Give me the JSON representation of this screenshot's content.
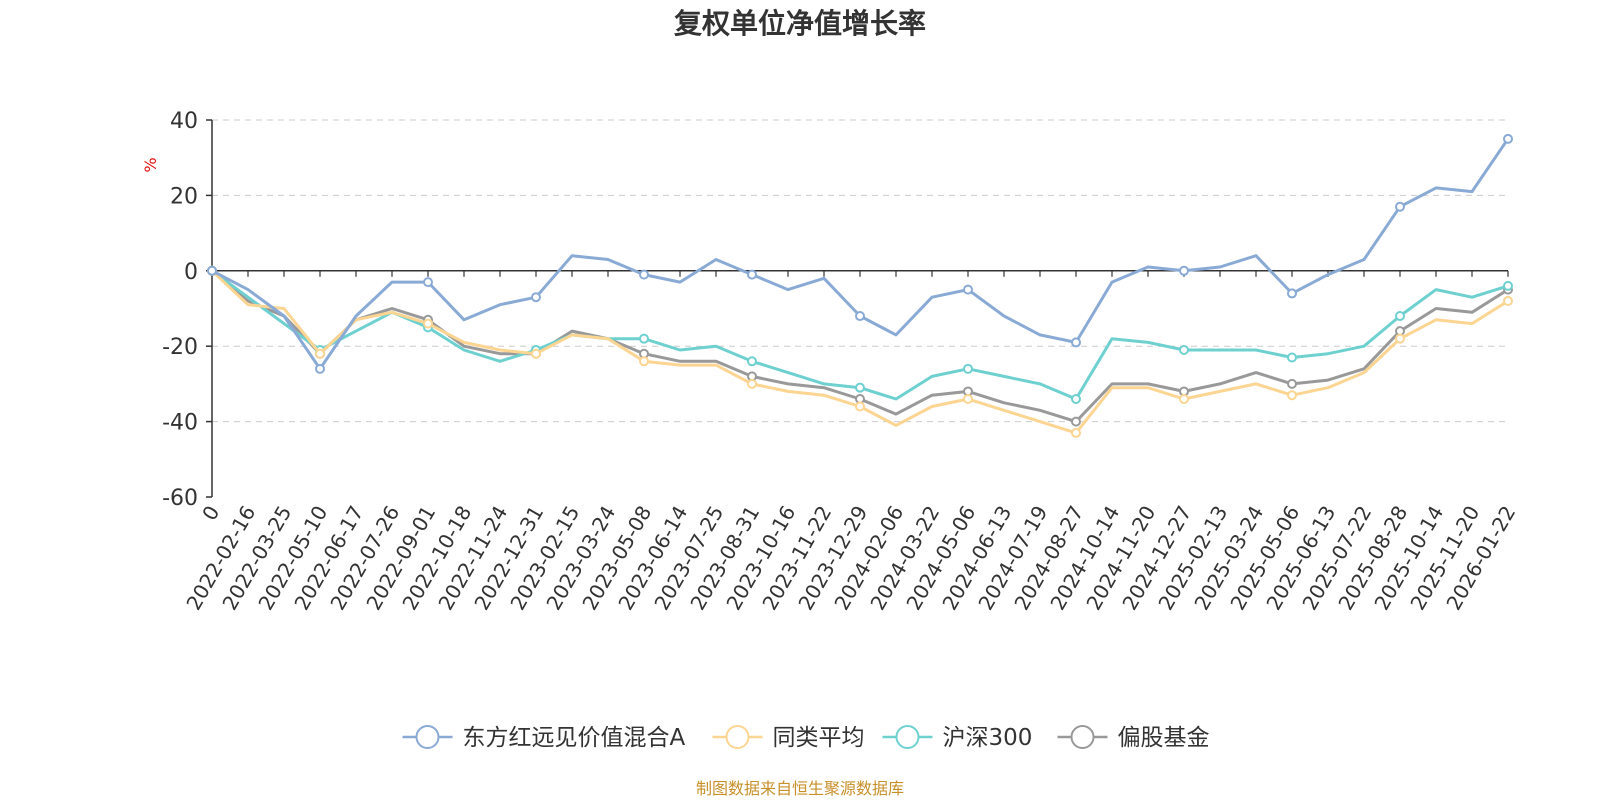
{
  "chart_data": {
    "type": "line",
    "title": "复权单位净值增长率",
    "ylabel": "%",
    "ylim": [
      -60,
      40
    ],
    "yticks": [
      40,
      20,
      0,
      -20,
      -40,
      -60
    ],
    "grid": true,
    "legend_position": "bottom",
    "source": "制图数据来自恒生聚源数据库",
    "colors": {
      "title": "#333333",
      "axis": "#333333",
      "grid": "#cccccc",
      "ylabel": "#e01010",
      "source": "#c8902a"
    },
    "categories": [
      "0",
      "2022-02-16",
      "2022-03-25",
      "2022-05-10",
      "2022-06-17",
      "2022-07-26",
      "2022-09-01",
      "2022-10-18",
      "2022-11-24",
      "2022-12-31",
      "2023-02-15",
      "2023-03-24",
      "2023-05-08",
      "2023-06-14",
      "2023-07-25",
      "2023-08-31",
      "2023-10-16",
      "2023-11-22",
      "2023-12-29",
      "2024-02-06",
      "2024-03-22",
      "2024-05-06",
      "2024-06-13",
      "2024-07-19",
      "2024-08-27",
      "2024-10-14",
      "2024-11-20",
      "2024-12-27",
      "2025-02-13",
      "2025-03-24",
      "2025-05-06",
      "2025-06-13",
      "2025-07-22",
      "2025-08-28",
      "2025-10-14",
      "2025-11-20",
      "2026-01-22"
    ],
    "series": [
      {
        "name": "东方红远见价值混合A",
        "color": "#8aaad6",
        "values": [
          0,
          -5,
          -12,
          -26,
          -12,
          -3,
          -3,
          -13,
          -9,
          -7,
          4,
          3,
          -1,
          -3,
          3,
          -1,
          -5,
          -2,
          -12,
          -17,
          -7,
          -5,
          -12,
          -17,
          -19,
          -3,
          1,
          0,
          1,
          4,
          -6,
          -1,
          3,
          17,
          22,
          21,
          35
        ]
      },
      {
        "name": "同类平均",
        "color": "#fbd591",
        "values": [
          0,
          -9,
          -10,
          -22,
          -13,
          -11,
          -14,
          -19,
          -21,
          -22,
          -17,
          -18,
          -24,
          -25,
          -25,
          -30,
          -32,
          -33,
          -36,
          -41,
          -36,
          -34,
          -37,
          -40,
          -43,
          -31,
          -31,
          -34,
          -32,
          -30,
          -33,
          -31,
          -27,
          -18,
          -13,
          -14,
          -8
        ]
      },
      {
        "name": "沪深300",
        "color": "#6fd0d0",
        "values": [
          0,
          -7,
          -14,
          -21,
          -16,
          -11,
          -15,
          -21,
          -24,
          -21,
          -17,
          -18,
          -18,
          -21,
          -20,
          -24,
          -27,
          -30,
          -31,
          -34,
          -28,
          -26,
          -28,
          -30,
          -34,
          -18,
          -19,
          -21,
          -21,
          -21,
          -23,
          -22,
          -20,
          -12,
          -5,
          -7,
          -4
        ]
      },
      {
        "name": "偏股基金",
        "color": "#999999",
        "values": [
          0,
          -8,
          -12,
          -22,
          -13,
          -10,
          -13,
          -20,
          -22,
          -22,
          -16,
          -18,
          -22,
          -24,
          -24,
          -28,
          -30,
          -31,
          -34,
          -38,
          -33,
          -32,
          -35,
          -37,
          -40,
          -30,
          -30,
          -32,
          -30,
          -27,
          -30,
          -29,
          -26,
          -16,
          -10,
          -11,
          -5
        ]
      }
    ]
  }
}
